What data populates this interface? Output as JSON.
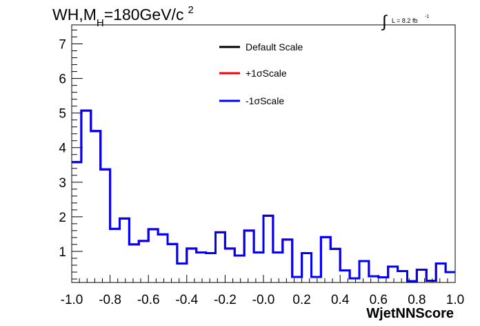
{
  "title": {
    "main": "WH,M",
    "sub": "H",
    "rest": "=180GeV/c",
    "sup": "2"
  },
  "lumi": {
    "integral": "∫",
    "text": "L = 8.2 fb",
    "sup": "-1"
  },
  "legend": [
    {
      "label": "Default Scale",
      "color": "#000000"
    },
    {
      "label": "+1σScale",
      "color": "#ff0000"
    },
    {
      "label": "-1σScale",
      "color": "#0000ff"
    }
  ],
  "chart_data": {
    "type": "line",
    "style": "step histogram",
    "xlabel": "WjetNNScore",
    "ylabel": "",
    "xlim": [
      -1.0,
      1.0
    ],
    "ylim": [
      0.1,
      7.55
    ],
    "x_ticks": [
      "-1.0",
      "-0.8",
      "-0.6",
      "-0.4",
      "-0.2",
      "-0.0",
      "0.2",
      "0.4",
      "0.6",
      "0.8",
      "1.0"
    ],
    "x_tick_values": [
      -1.0,
      -0.8,
      -0.6,
      -0.4,
      -0.2,
      0.0,
      0.2,
      0.4,
      0.6,
      0.8,
      1.0
    ],
    "y_ticks": [
      "1",
      "2",
      "3",
      "4",
      "5",
      "6",
      "7"
    ],
    "y_tick_values": [
      1,
      2,
      3,
      4,
      5,
      6,
      7
    ],
    "bin_edges": [
      -1.0,
      -0.95,
      -0.9,
      -0.85,
      -0.8,
      -0.75,
      -0.7,
      -0.65,
      -0.6,
      -0.55,
      -0.5,
      -0.45,
      -0.4,
      -0.35,
      -0.3,
      -0.25,
      -0.2,
      -0.15,
      -0.1,
      -0.05,
      0.0,
      0.05,
      0.1,
      0.15,
      0.2,
      0.25,
      0.3,
      0.35,
      0.4,
      0.45,
      0.5,
      0.55,
      0.6,
      0.65,
      0.7,
      0.75,
      0.8,
      0.85,
      0.9,
      0.95,
      1.0
    ],
    "series": [
      {
        "name": "Default Scale",
        "color": "#000000",
        "values": [
          3.58,
          5.07,
          4.48,
          3.37,
          1.65,
          1.95,
          1.2,
          1.3,
          1.64,
          1.49,
          1.21,
          0.65,
          1.08,
          0.97,
          0.95,
          1.55,
          1.08,
          0.88,
          1.6,
          0.97,
          2.03,
          0.97,
          1.34,
          0.26,
          0.95,
          0.26,
          1.41,
          1.07,
          0.45,
          0.22,
          0.72,
          0.28,
          0.25,
          0.56,
          0.43,
          0.14,
          0.47,
          0.15,
          0.65,
          0.4
        ]
      },
      {
        "name": "+1σScale",
        "color": "#ff0000",
        "values": [
          3.58,
          5.07,
          4.48,
          3.37,
          1.65,
          1.95,
          1.2,
          1.3,
          1.64,
          1.49,
          1.21,
          0.65,
          1.08,
          0.97,
          0.95,
          1.55,
          1.08,
          0.88,
          1.6,
          0.97,
          2.03,
          0.97,
          1.34,
          0.26,
          0.95,
          0.26,
          1.41,
          1.07,
          0.45,
          0.22,
          0.72,
          0.28,
          0.25,
          0.56,
          0.43,
          0.14,
          0.47,
          0.15,
          0.65,
          0.4
        ]
      },
      {
        "name": "-1σScale",
        "color": "#0000ff",
        "values": [
          3.58,
          5.07,
          4.48,
          3.37,
          1.65,
          1.95,
          1.2,
          1.3,
          1.64,
          1.49,
          1.21,
          0.65,
          1.08,
          0.97,
          0.95,
          1.55,
          1.08,
          0.88,
          1.6,
          0.97,
          2.03,
          0.97,
          1.34,
          0.26,
          0.95,
          0.26,
          1.41,
          1.07,
          0.45,
          0.22,
          0.72,
          0.28,
          0.25,
          0.56,
          0.43,
          0.14,
          0.47,
          0.15,
          0.65,
          0.4
        ]
      }
    ]
  }
}
